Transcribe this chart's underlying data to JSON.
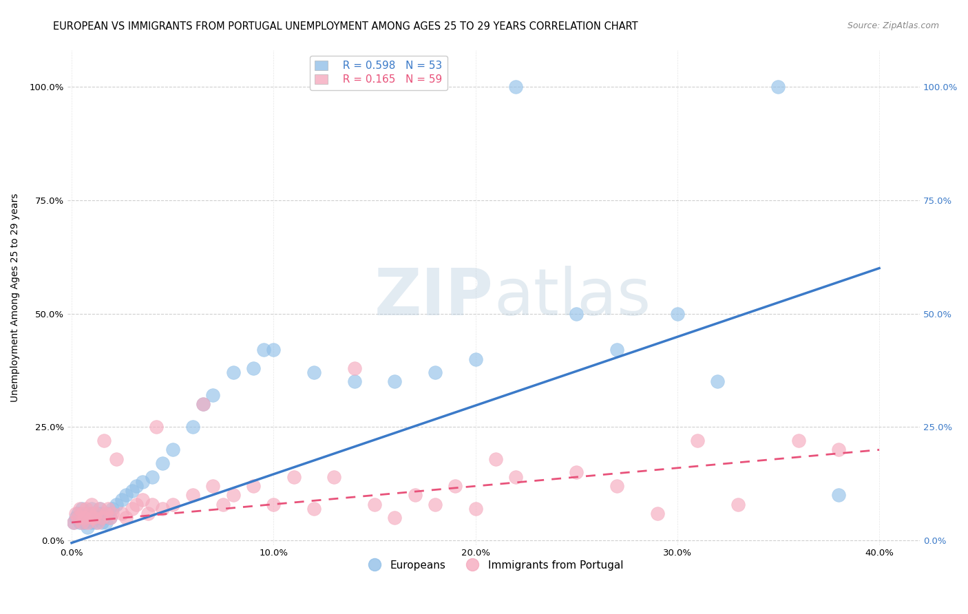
{
  "title": "EUROPEAN VS IMMIGRANTS FROM PORTUGAL UNEMPLOYMENT AMONG AGES 25 TO 29 YEARS CORRELATION CHART",
  "source": "Source: ZipAtlas.com",
  "ylabel": "Unemployment Among Ages 25 to 29 years",
  "xlabel_ticks": [
    "0.0%",
    "10.0%",
    "20.0%",
    "30.0%",
    "40.0%"
  ],
  "xlabel_vals": [
    0.0,
    0.1,
    0.2,
    0.3,
    0.4
  ],
  "ylabel_ticks": [
    "0.0%",
    "25.0%",
    "50.0%",
    "75.0%",
    "100.0%"
  ],
  "ylabel_vals": [
    0.0,
    0.25,
    0.5,
    0.75,
    1.0
  ],
  "xlim": [
    -0.002,
    0.42
  ],
  "ylim": [
    -0.01,
    1.08
  ],
  "europeans_R": 0.598,
  "europeans_N": 53,
  "portugal_R": 0.165,
  "portugal_N": 59,
  "blue_color": "#92C0E8",
  "pink_color": "#F5AABE",
  "blue_line_color": "#3B7AC8",
  "pink_line_color": "#E8527A",
  "watermark_color": "#C8D8E8",
  "legend_label_european": "Europeans",
  "legend_label_portugal": "Immigrants from Portugal",
  "eu_line_x0": 0.0,
  "eu_line_y0": -0.005,
  "eu_line_x1": 0.4,
  "eu_line_y1": 0.6,
  "pt_line_x0": 0.0,
  "pt_line_y0": 0.04,
  "pt_line_x1": 0.4,
  "pt_line_y1": 0.2,
  "europeans_x": [
    0.001,
    0.002,
    0.003,
    0.004,
    0.005,
    0.005,
    0.006,
    0.007,
    0.008,
    0.008,
    0.009,
    0.01,
    0.01,
    0.011,
    0.012,
    0.013,
    0.013,
    0.014,
    0.015,
    0.015,
    0.016,
    0.017,
    0.018,
    0.019,
    0.02,
    0.022,
    0.025,
    0.027,
    0.03,
    0.032,
    0.035,
    0.04,
    0.045,
    0.05,
    0.06,
    0.065,
    0.07,
    0.08,
    0.09,
    0.095,
    0.1,
    0.12,
    0.14,
    0.16,
    0.18,
    0.2,
    0.22,
    0.25,
    0.27,
    0.3,
    0.32,
    0.35,
    0.38
  ],
  "europeans_y": [
    0.04,
    0.05,
    0.06,
    0.04,
    0.05,
    0.07,
    0.04,
    0.06,
    0.05,
    0.03,
    0.06,
    0.04,
    0.07,
    0.05,
    0.04,
    0.06,
    0.05,
    0.07,
    0.04,
    0.06,
    0.05,
    0.04,
    0.06,
    0.05,
    0.07,
    0.08,
    0.09,
    0.1,
    0.11,
    0.12,
    0.13,
    0.14,
    0.17,
    0.2,
    0.25,
    0.3,
    0.32,
    0.37,
    0.38,
    0.42,
    0.42,
    0.37,
    0.35,
    0.35,
    0.37,
    0.4,
    1.0,
    0.5,
    0.42,
    0.5,
    0.35,
    1.0,
    0.1
  ],
  "portugal_x": [
    0.001,
    0.002,
    0.003,
    0.004,
    0.005,
    0.005,
    0.006,
    0.007,
    0.008,
    0.009,
    0.01,
    0.01,
    0.011,
    0.012,
    0.013,
    0.014,
    0.015,
    0.016,
    0.017,
    0.018,
    0.019,
    0.02,
    0.022,
    0.025,
    0.027,
    0.03,
    0.032,
    0.035,
    0.038,
    0.04,
    0.042,
    0.045,
    0.05,
    0.06,
    0.065,
    0.07,
    0.075,
    0.08,
    0.09,
    0.1,
    0.11,
    0.12,
    0.13,
    0.14,
    0.15,
    0.16,
    0.17,
    0.18,
    0.19,
    0.2,
    0.21,
    0.22,
    0.25,
    0.27,
    0.29,
    0.31,
    0.33,
    0.36,
    0.38
  ],
  "portugal_y": [
    0.04,
    0.06,
    0.05,
    0.07,
    0.04,
    0.06,
    0.05,
    0.07,
    0.04,
    0.06,
    0.05,
    0.08,
    0.05,
    0.06,
    0.04,
    0.07,
    0.05,
    0.22,
    0.06,
    0.07,
    0.05,
    0.06,
    0.18,
    0.06,
    0.05,
    0.07,
    0.08,
    0.09,
    0.06,
    0.08,
    0.25,
    0.07,
    0.08,
    0.1,
    0.3,
    0.12,
    0.08,
    0.1,
    0.12,
    0.08,
    0.14,
    0.07,
    0.14,
    0.38,
    0.08,
    0.05,
    0.1,
    0.08,
    0.12,
    0.07,
    0.18,
    0.14,
    0.15,
    0.12,
    0.06,
    0.22,
    0.08,
    0.22,
    0.2
  ],
  "title_fontsize": 10.5,
  "source_fontsize": 9,
  "axis_label_fontsize": 10,
  "tick_fontsize": 9.5,
  "legend_fontsize": 11
}
